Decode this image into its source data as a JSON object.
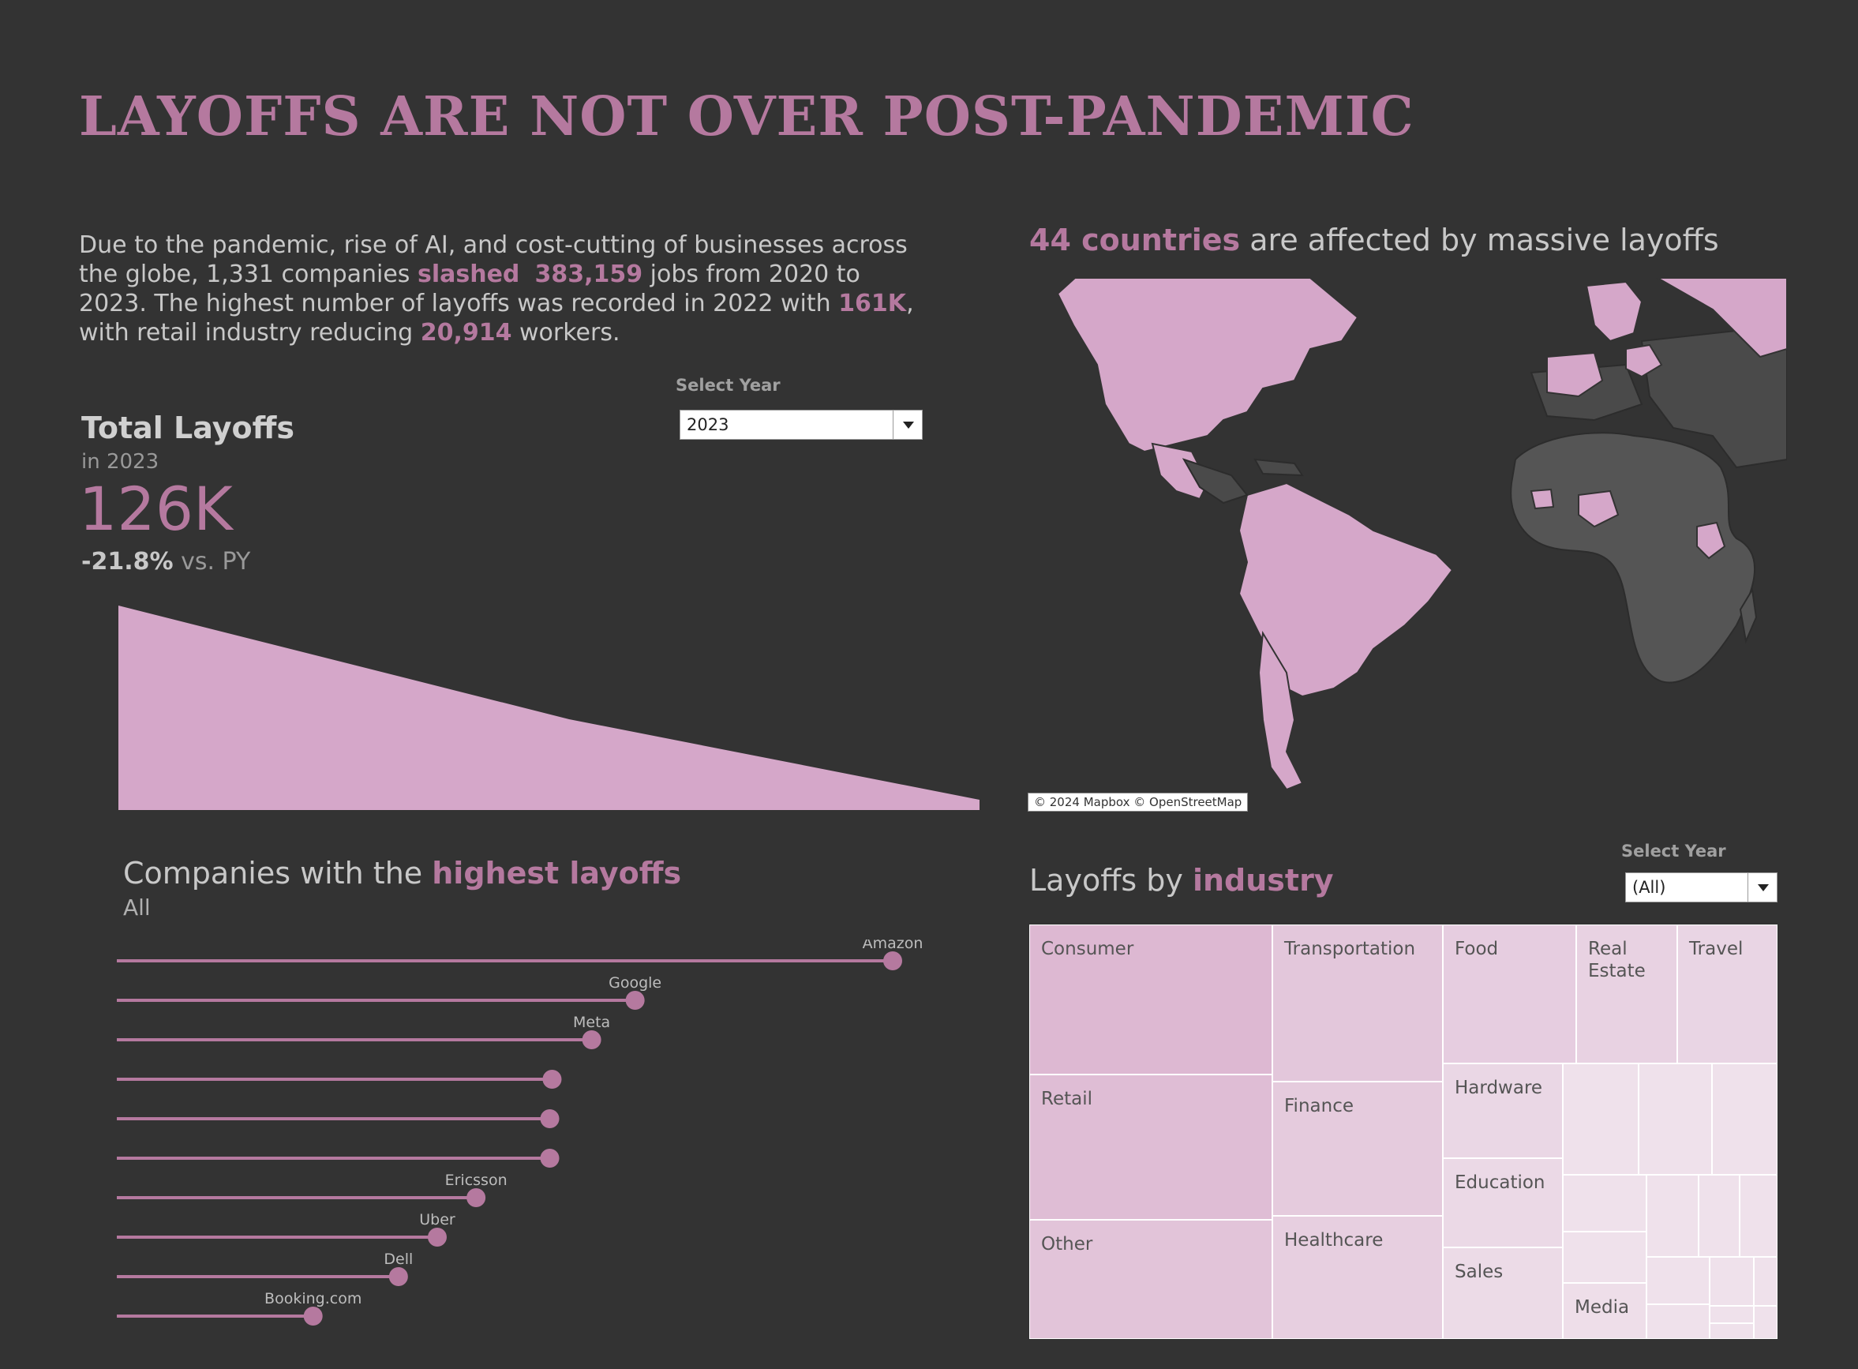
{
  "page_title": "LAYOFFS ARE NOT OVER POST-PANDEMIC",
  "intro": {
    "p1": "Due to the pandemic, rise of AI, and cost-cutting of businesses across the globe, 1,331 companies ",
    "slashed": "slashed",
    "jobs": "383,159",
    "p2": " jobs from 2020 to 2023. The highest number of layoffs was recorded in 2022 with ",
    "peak": "161K",
    "p3": ", with retail industry reducing ",
    "retail": "20,914",
    "p4": " workers."
  },
  "year_filter_top": {
    "label": "Select Year",
    "value": "2023"
  },
  "kpi": {
    "title": "Total Layoffs",
    "subtitle": "in 2023",
    "value": "126K",
    "change_pct": "-21.8%",
    "change_suffix": " vs. PY"
  },
  "trend_area": {
    "fill": "#d5a7c9"
  },
  "map": {
    "title_accent": "44 countries",
    "title_rest": " are affected by massive layoffs",
    "attribution": "© 2024 Mapbox © OpenStreetMap",
    "highlight_color": "#d5a7c9"
  },
  "companies": {
    "title_prefix": "Companies with the ",
    "title_accent": "highest layoffs",
    "subtitle": "All",
    "color": "#b5799f",
    "chart_data": {
      "type": "lollipop",
      "categories": [
        "Amazon",
        "Google",
        "Meta",
        "",
        "",
        "",
        "Ericsson",
        "Uber",
        "Dell",
        "Booking.com"
      ],
      "values": [
        100,
        66.8,
        61.2,
        56.1,
        55.8,
        55.8,
        46.3,
        41.3,
        36.3,
        25.3
      ],
      "xlim": [
        0,
        100
      ]
    }
  },
  "industry": {
    "title_prefix": "Layoffs by ",
    "title_accent": "industry",
    "filter": {
      "label": "Select Year",
      "value": "(All)"
    },
    "tiles": [
      {
        "name": "Consumer",
        "color": "#ddb8d2"
      },
      {
        "name": "Retail",
        "color": "#dfbdd5"
      },
      {
        "name": "Other",
        "color": "#e2c4d9"
      },
      {
        "name": "Transportation",
        "color": "#e3c7db"
      },
      {
        "name": "Finance",
        "color": "#e5cbdd"
      },
      {
        "name": "Healthcare",
        "color": "#e7cfe0"
      },
      {
        "name": "Food",
        "color": "#e6cde0"
      },
      {
        "name": "Real Estate",
        "color": "#e8d2e2"
      },
      {
        "name": "Travel",
        "color": "#e9d5e4"
      },
      {
        "name": "Hardware",
        "color": "#ead7e5"
      },
      {
        "name": "Education",
        "color": "#ebd9e6"
      },
      {
        "name": "Sales",
        "color": "#ecdbe7"
      },
      {
        "name": "Media",
        "color": "#eedee9"
      }
    ],
    "minor_color": "#efe1eb"
  }
}
